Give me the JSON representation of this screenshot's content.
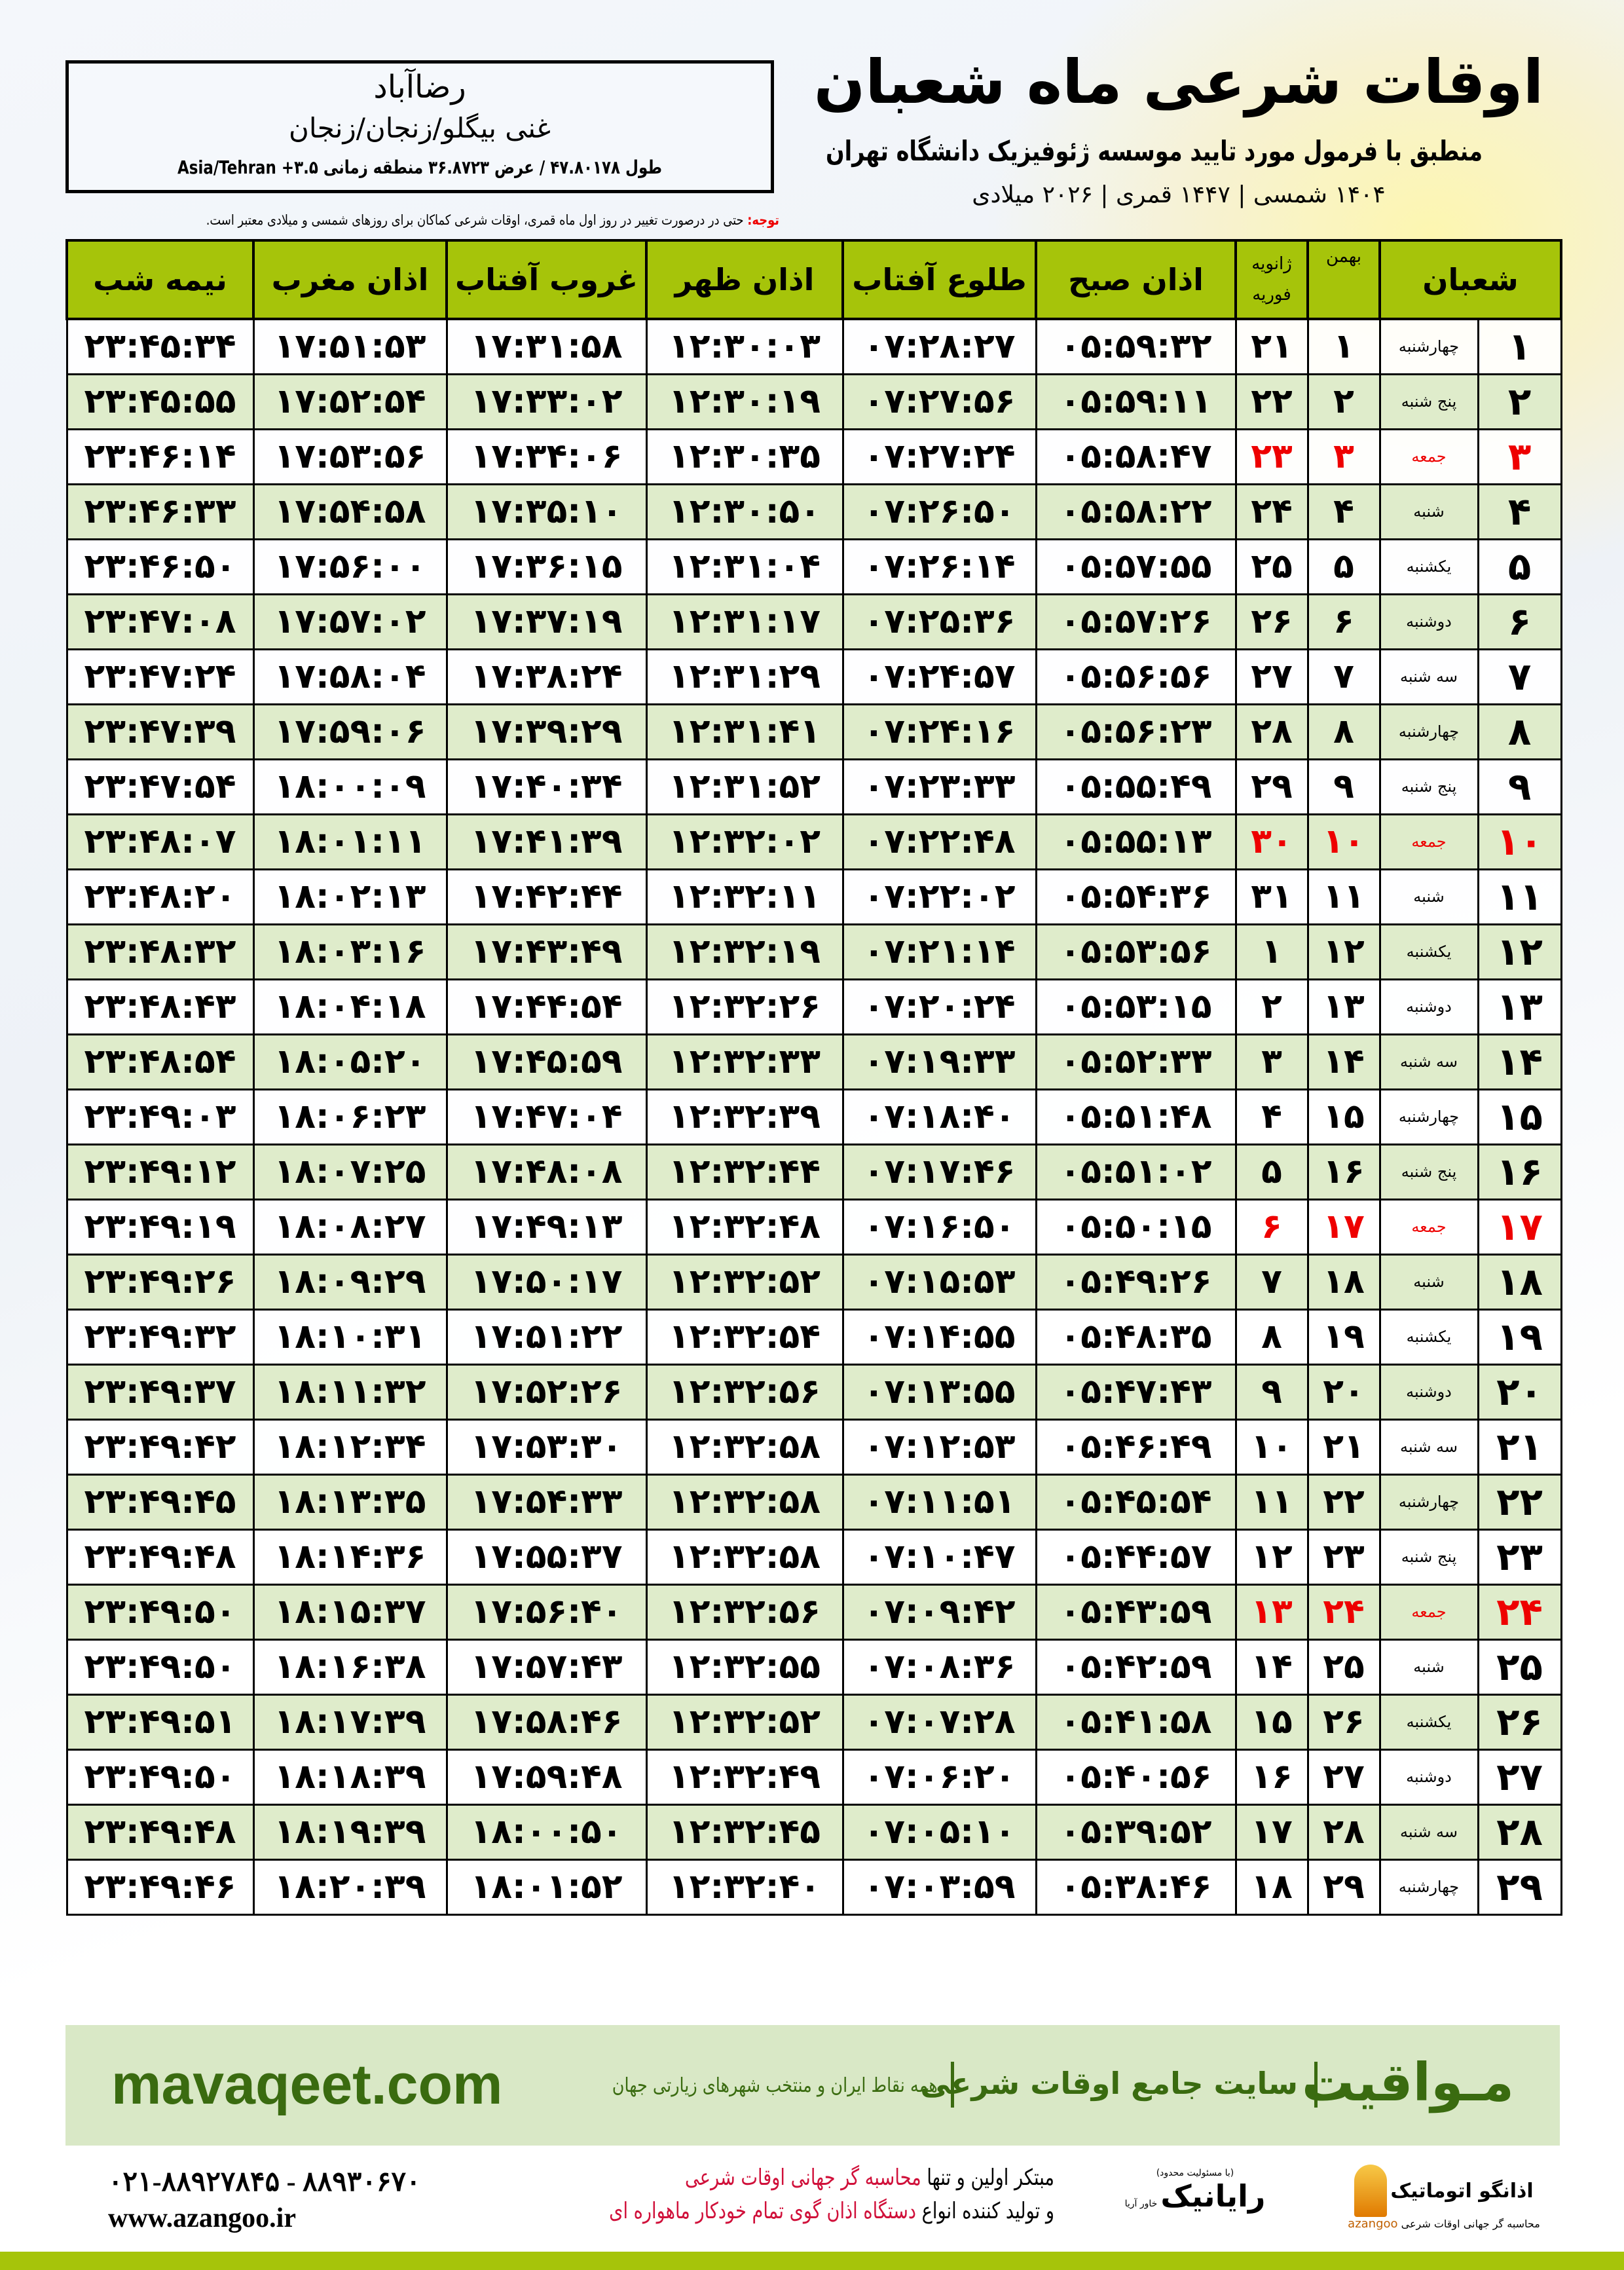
{
  "location": {
    "city": "رضاآباد",
    "region": "غنی بیگلو/زنجان/زنجان",
    "coords": "طول ۴۷.۸۰۱۷۸ / عرض ۳۶.۸۷۲۳ منطقه زمانی ۳.۵+ Asia/Tehran"
  },
  "title": {
    "main": "اوقات شرعی ماه شعبان",
    "subtitle": "منطبق با فرمول مورد تایید موسسه ژئوفیزیک دانشگاه تهران",
    "years": "۱۴۰۴ شمسی | ۱۴۴۷ قمری | ۲۰۲۶ میلادی"
  },
  "note": {
    "label": "توجه:",
    "text": " حتی در درصورت تغییر در روز اول ماه قمری، اوقات شرعی کماکان برای روزهای شمسی و میلادی معتبر است."
  },
  "colors": {
    "header_green": "#a6c40a",
    "row_green": "#dfeccb",
    "friday_red": "#e00000",
    "brand_green": "#3a6b10"
  },
  "table": {
    "headers": {
      "hijri": "شعبان",
      "shamsi": "بهمن",
      "greg_top": "ژانویه",
      "greg_bottom": "فوریه",
      "sobh": "اذان صبح",
      "tolu": "طلوع آفتاب",
      "zohr": "اذان ظهر",
      "ghorub": "غروب آفتاب",
      "maghrib": "اذان مغرب",
      "nime": "نیمه شب"
    },
    "rows": [
      [
        "۱",
        "چهارشنبه",
        "۱",
        "۲۱",
        "۰۵:۵۹:۳۲",
        "۰۷:۲۸:۲۷",
        "۱۲:۳۰:۰۳",
        "۱۷:۳۱:۵۸",
        "۱۷:۵۱:۵۳",
        "۲۳:۴۵:۳۴"
      ],
      [
        "۲",
        "پنج شنبه",
        "۲",
        "۲۲",
        "۰۵:۵۹:۱۱",
        "۰۷:۲۷:۵۶",
        "۱۲:۳۰:۱۹",
        "۱۷:۳۳:۰۲",
        "۱۷:۵۲:۵۴",
        "۲۳:۴۵:۵۵"
      ],
      [
        "۳",
        "جمعه",
        "۳",
        "۲۳",
        "۰۵:۵۸:۴۷",
        "۰۷:۲۷:۲۴",
        "۱۲:۳۰:۳۵",
        "۱۷:۳۴:۰۶",
        "۱۷:۵۳:۵۶",
        "۲۳:۴۶:۱۴"
      ],
      [
        "۴",
        "شنبه",
        "۴",
        "۲۴",
        "۰۵:۵۸:۲۲",
        "۰۷:۲۶:۵۰",
        "۱۲:۳۰:۵۰",
        "۱۷:۳۵:۱۰",
        "۱۷:۵۴:۵۸",
        "۲۳:۴۶:۳۳"
      ],
      [
        "۵",
        "یکشنبه",
        "۵",
        "۲۵",
        "۰۵:۵۷:۵۵",
        "۰۷:۲۶:۱۴",
        "۱۲:۳۱:۰۴",
        "۱۷:۳۶:۱۵",
        "۱۷:۵۶:۰۰",
        "۲۳:۴۶:۵۰"
      ],
      [
        "۶",
        "دوشنبه",
        "۶",
        "۲۶",
        "۰۵:۵۷:۲۶",
        "۰۷:۲۵:۳۶",
        "۱۲:۳۱:۱۷",
        "۱۷:۳۷:۱۹",
        "۱۷:۵۷:۰۲",
        "۲۳:۴۷:۰۸"
      ],
      [
        "۷",
        "سه شنبه",
        "۷",
        "۲۷",
        "۰۵:۵۶:۵۶",
        "۰۷:۲۴:۵۷",
        "۱۲:۳۱:۲۹",
        "۱۷:۳۸:۲۴",
        "۱۷:۵۸:۰۴",
        "۲۳:۴۷:۲۴"
      ],
      [
        "۸",
        "چهارشنبه",
        "۸",
        "۲۸",
        "۰۵:۵۶:۲۳",
        "۰۷:۲۴:۱۶",
        "۱۲:۳۱:۴۱",
        "۱۷:۳۹:۲۹",
        "۱۷:۵۹:۰۶",
        "۲۳:۴۷:۳۹"
      ],
      [
        "۹",
        "پنج شنبه",
        "۹",
        "۲۹",
        "۰۵:۵۵:۴۹",
        "۰۷:۲۳:۳۳",
        "۱۲:۳۱:۵۲",
        "۱۷:۴۰:۳۴",
        "۱۸:۰۰:۰۹",
        "۲۳:۴۷:۵۴"
      ],
      [
        "۱۰",
        "جمعه",
        "۱۰",
        "۳۰",
        "۰۵:۵۵:۱۳",
        "۰۷:۲۲:۴۸",
        "۱۲:۳۲:۰۲",
        "۱۷:۴۱:۳۹",
        "۱۸:۰۱:۱۱",
        "۲۳:۴۸:۰۷"
      ],
      [
        "۱۱",
        "شنبه",
        "۱۱",
        "۳۱",
        "۰۵:۵۴:۳۶",
        "۰۷:۲۲:۰۲",
        "۱۲:۳۲:۱۱",
        "۱۷:۴۲:۴۴",
        "۱۸:۰۲:۱۳",
        "۲۳:۴۸:۲۰"
      ],
      [
        "۱۲",
        "یکشنبه",
        "۱۲",
        "۱",
        "۰۵:۵۳:۵۶",
        "۰۷:۲۱:۱۴",
        "۱۲:۳۲:۱۹",
        "۱۷:۴۳:۴۹",
        "۱۸:۰۳:۱۶",
        "۲۳:۴۸:۳۲"
      ],
      [
        "۱۳",
        "دوشنبه",
        "۱۳",
        "۲",
        "۰۵:۵۳:۱۵",
        "۰۷:۲۰:۲۴",
        "۱۲:۳۲:۲۶",
        "۱۷:۴۴:۵۴",
        "۱۸:۰۴:۱۸",
        "۲۳:۴۸:۴۳"
      ],
      [
        "۱۴",
        "سه شنبه",
        "۱۴",
        "۳",
        "۰۵:۵۲:۳۳",
        "۰۷:۱۹:۳۳",
        "۱۲:۳۲:۳۳",
        "۱۷:۴۵:۵۹",
        "۱۸:۰۵:۲۰",
        "۲۳:۴۸:۵۴"
      ],
      [
        "۱۵",
        "چهارشنبه",
        "۱۵",
        "۴",
        "۰۵:۵۱:۴۸",
        "۰۷:۱۸:۴۰",
        "۱۲:۳۲:۳۹",
        "۱۷:۴۷:۰۴",
        "۱۸:۰۶:۲۳",
        "۲۳:۴۹:۰۳"
      ],
      [
        "۱۶",
        "پنج شنبه",
        "۱۶",
        "۵",
        "۰۵:۵۱:۰۲",
        "۰۷:۱۷:۴۶",
        "۱۲:۳۲:۴۴",
        "۱۷:۴۸:۰۸",
        "۱۸:۰۷:۲۵",
        "۲۳:۴۹:۱۲"
      ],
      [
        "۱۷",
        "جمعه",
        "۱۷",
        "۶",
        "۰۵:۵۰:۱۵",
        "۰۷:۱۶:۵۰",
        "۱۲:۳۲:۴۸",
        "۱۷:۴۹:۱۳",
        "۱۸:۰۸:۲۷",
        "۲۳:۴۹:۱۹"
      ],
      [
        "۱۸",
        "شنبه",
        "۱۸",
        "۷",
        "۰۵:۴۹:۲۶",
        "۰۷:۱۵:۵۳",
        "۱۲:۳۲:۵۲",
        "۱۷:۵۰:۱۷",
        "۱۸:۰۹:۲۹",
        "۲۳:۴۹:۲۶"
      ],
      [
        "۱۹",
        "یکشنبه",
        "۱۹",
        "۸",
        "۰۵:۴۸:۳۵",
        "۰۷:۱۴:۵۵",
        "۱۲:۳۲:۵۴",
        "۱۷:۵۱:۲۲",
        "۱۸:۱۰:۳۱",
        "۲۳:۴۹:۳۲"
      ],
      [
        "۲۰",
        "دوشنبه",
        "۲۰",
        "۹",
        "۰۵:۴۷:۴۳",
        "۰۷:۱۳:۵۵",
        "۱۲:۳۲:۵۶",
        "۱۷:۵۲:۲۶",
        "۱۸:۱۱:۳۲",
        "۲۳:۴۹:۳۷"
      ],
      [
        "۲۱",
        "سه شنبه",
        "۲۱",
        "۱۰",
        "۰۵:۴۶:۴۹",
        "۰۷:۱۲:۵۳",
        "۱۲:۳۲:۵۸",
        "۱۷:۵۳:۳۰",
        "۱۸:۱۲:۳۴",
        "۲۳:۴۹:۴۲"
      ],
      [
        "۲۲",
        "چهارشنبه",
        "۲۲",
        "۱۱",
        "۰۵:۴۵:۵۴",
        "۰۷:۱۱:۵۱",
        "۱۲:۳۲:۵۸",
        "۱۷:۵۴:۳۳",
        "۱۸:۱۳:۳۵",
        "۲۳:۴۹:۴۵"
      ],
      [
        "۲۳",
        "پنج شنبه",
        "۲۳",
        "۱۲",
        "۰۵:۴۴:۵۷",
        "۰۷:۱۰:۴۷",
        "۱۲:۳۲:۵۸",
        "۱۷:۵۵:۳۷",
        "۱۸:۱۴:۳۶",
        "۲۳:۴۹:۴۸"
      ],
      [
        "۲۴",
        "جمعه",
        "۲۴",
        "۱۳",
        "۰۵:۴۳:۵۹",
        "۰۷:۰۹:۴۲",
        "۱۲:۳۲:۵۶",
        "۱۷:۵۶:۴۰",
        "۱۸:۱۵:۳۷",
        "۲۳:۴۹:۵۰"
      ],
      [
        "۲۵",
        "شنبه",
        "۲۵",
        "۱۴",
        "۰۵:۴۲:۵۹",
        "۰۷:۰۸:۳۶",
        "۱۲:۳۲:۵۵",
        "۱۷:۵۷:۴۳",
        "۱۸:۱۶:۳۸",
        "۲۳:۴۹:۵۰"
      ],
      [
        "۲۶",
        "یکشنبه",
        "۲۶",
        "۱۵",
        "۰۵:۴۱:۵۸",
        "۰۷:۰۷:۲۸",
        "۱۲:۳۲:۵۲",
        "۱۷:۵۸:۴۶",
        "۱۸:۱۷:۳۹",
        "۲۳:۴۹:۵۱"
      ],
      [
        "۲۷",
        "دوشنبه",
        "۲۷",
        "۱۶",
        "۰۵:۴۰:۵۶",
        "۰۷:۰۶:۲۰",
        "۱۲:۳۲:۴۹",
        "۱۷:۵۹:۴۸",
        "۱۸:۱۸:۳۹",
        "۲۳:۴۹:۵۰"
      ],
      [
        "۲۸",
        "سه شنبه",
        "۲۸",
        "۱۷",
        "۰۵:۳۹:۵۲",
        "۰۷:۰۵:۱۰",
        "۱۲:۳۲:۴۵",
        "۱۸:۰۰:۵۰",
        "۱۸:۱۹:۳۹",
        "۲۳:۴۹:۴۸"
      ],
      [
        "۲۹",
        "چهارشنبه",
        "۲۹",
        "۱۸",
        "۰۵:۳۸:۴۶",
        "۰۷:۰۳:۵۹",
        "۱۲:۳۲:۴۰",
        "۱۸:۰۱:۵۲",
        "۱۸:۲۰:۳۹",
        "۲۳:۴۹:۴۶"
      ]
    ]
  },
  "footer": {
    "brand": "مـواقیت",
    "tagline": "سایت جامع اوقات شرعی",
    "tagline2": "همه نقاط ایران و منتخب شهرهای زیارتی جهان",
    "site": "mavaqeet.com",
    "line1_a": "مبتکر اولین و تنها ",
    "line1_b": "محاسبه گر جهانی اوقات شرعی",
    "line2_a": "و تولید کننده انواع ",
    "line2_b": "دستگاه اذان گوی تمام خودکار ماهواره ای",
    "logo1_name": "اذانگو اتوماتیک",
    "logo1_en": "azangoo",
    "logo1_sub": "محاسبه گر جهانی اوقات شرعی",
    "logo2_name": "رایانیک",
    "logo2_sub": "خاور آریا",
    "logo2_top": "(با مسئولیت محدود)",
    "phone": "۰۲۱-۸۸۹۲۷۸۴۵ - ۸۸۹۳۰۶۷۰",
    "web": "www.azangoo.ir"
  }
}
